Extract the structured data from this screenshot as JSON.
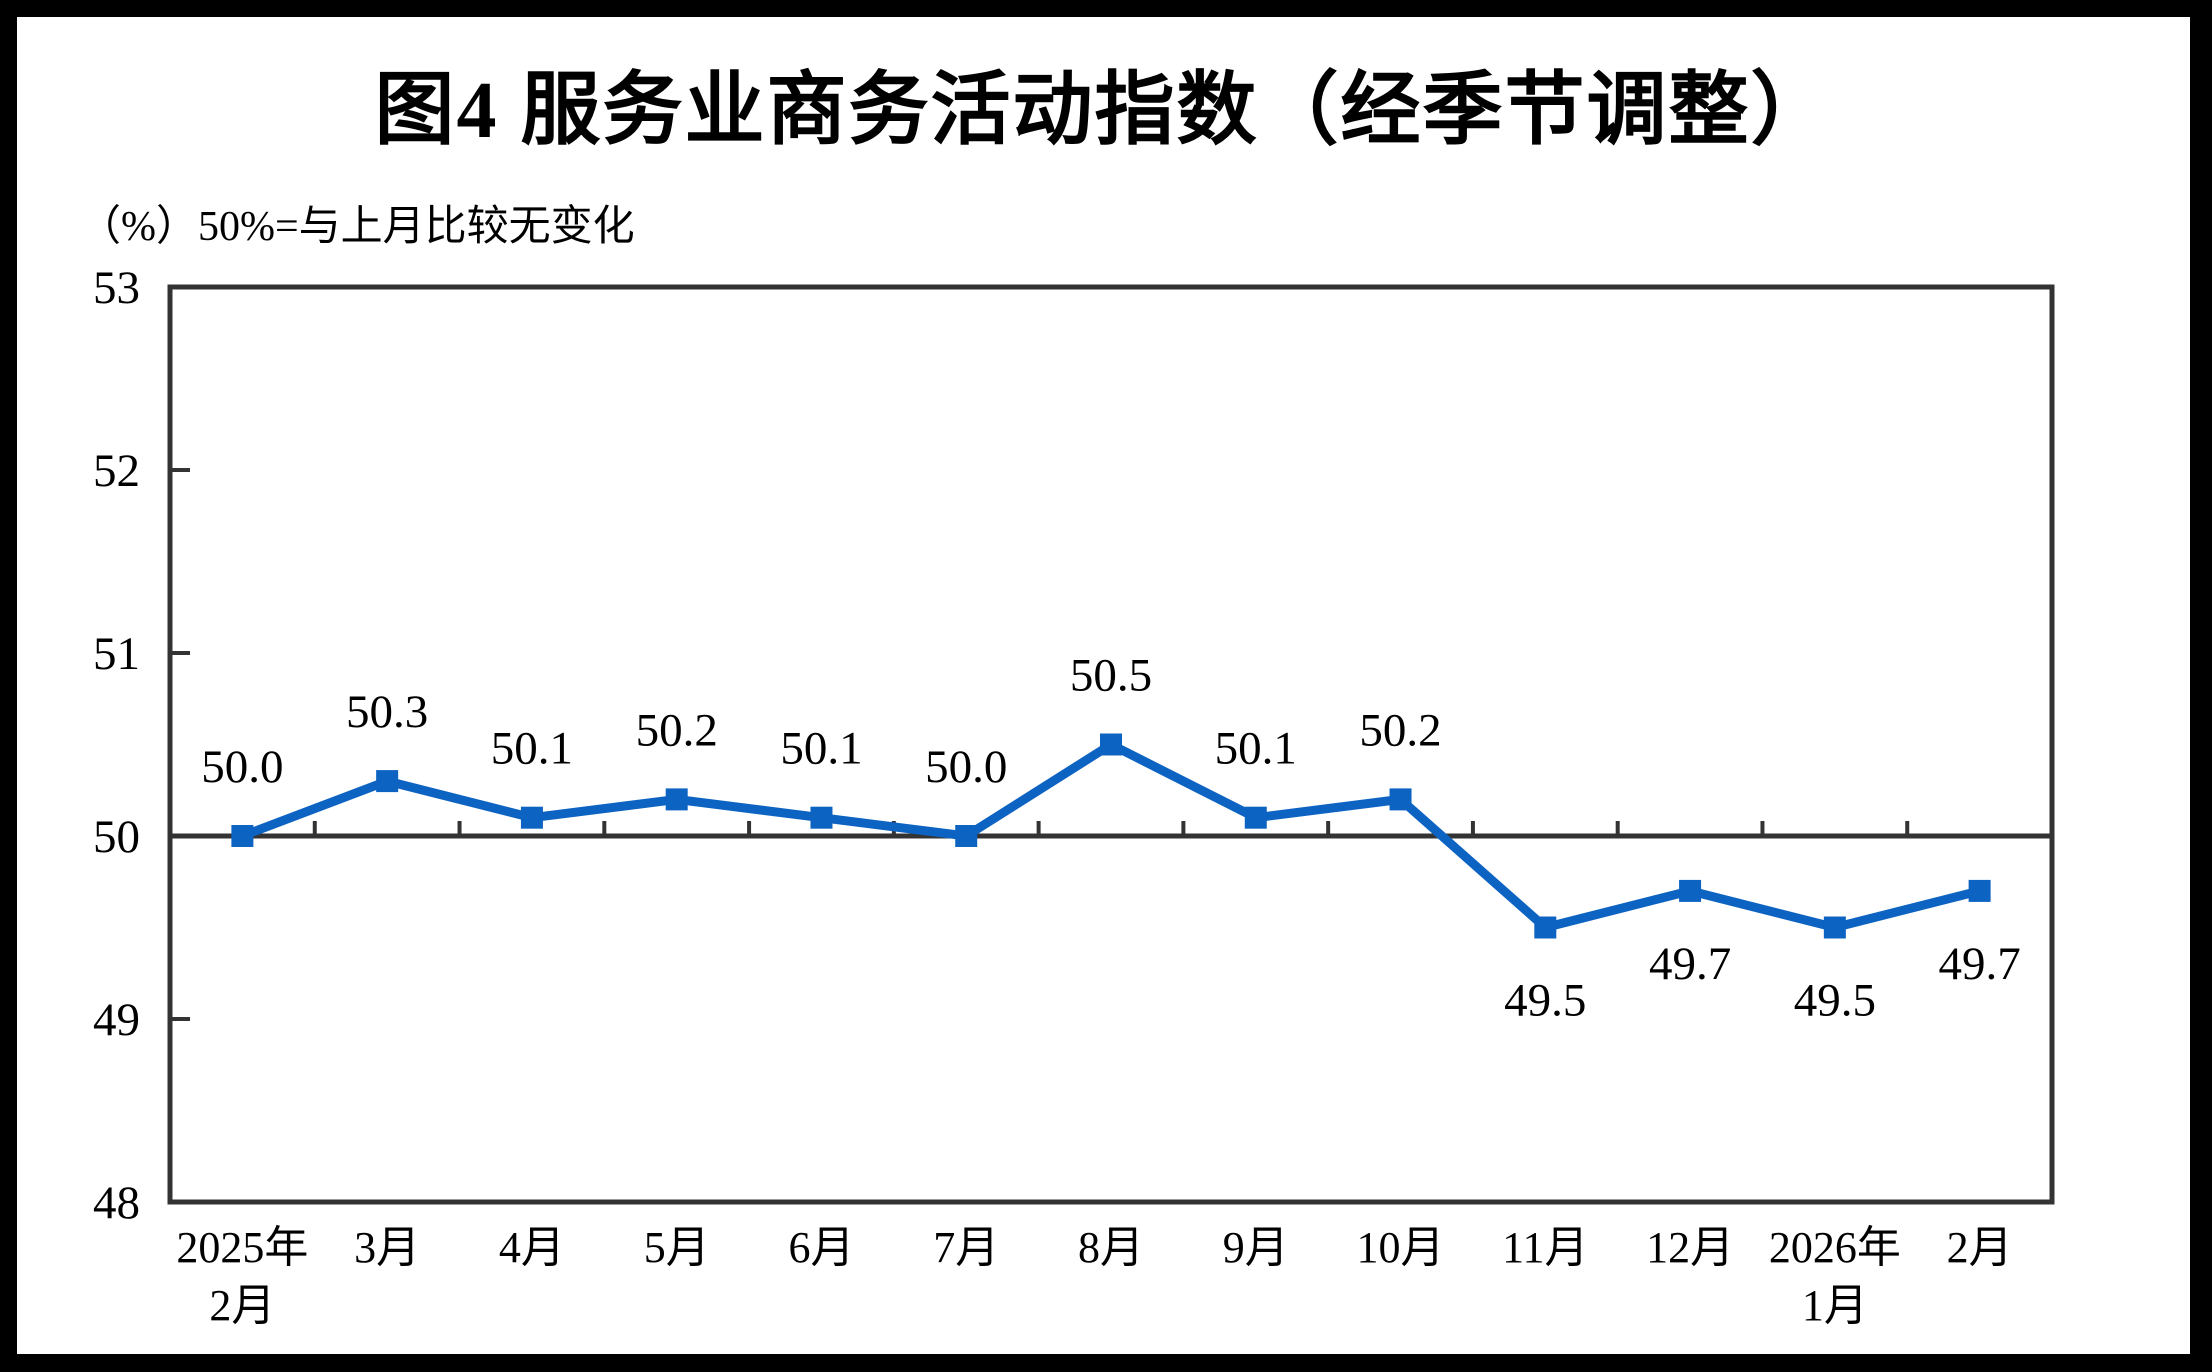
{
  "chart_data": {
    "type": "line",
    "title": "图4  服务业商务活动指数（经季节调整）",
    "subtitle": "（%）50%=与上月比较无变化",
    "categories": [
      "2025年|2月",
      "3月",
      "4月",
      "5月",
      "6月",
      "7月",
      "8月",
      "9月",
      "10月",
      "11月",
      "12月",
      "2026年|1月",
      "2月"
    ],
    "series": [
      {
        "name": "服务业商务活动指数",
        "values": [
          50.0,
          50.3,
          50.1,
          50.2,
          50.1,
          50.0,
          50.5,
          50.1,
          50.2,
          49.5,
          49.7,
          49.5,
          49.7
        ],
        "data_labels": [
          "50.0",
          "50.3",
          "50.1",
          "50.2",
          "50.1",
          "50.0",
          "50.5",
          "50.1",
          "50.2",
          "49.5",
          "49.7",
          "49.5",
          "49.7"
        ],
        "label_positions": [
          "above",
          "above",
          "above",
          "above",
          "above",
          "above",
          "above",
          "above",
          "above",
          "below",
          "below",
          "below",
          "below"
        ]
      }
    ],
    "xlabel": "",
    "ylabel": "（%）",
    "ylim": [
      48,
      53
    ],
    "yticks": [
      48,
      49,
      50,
      51,
      52,
      53
    ],
    "reference_line": 50,
    "grid": "off",
    "legend": "none",
    "marker": "square",
    "colors": {
      "line": "#0D63C2",
      "axis": "#333333",
      "text": "#000000",
      "background": "#ffffff",
      "frame": "#000000"
    }
  }
}
